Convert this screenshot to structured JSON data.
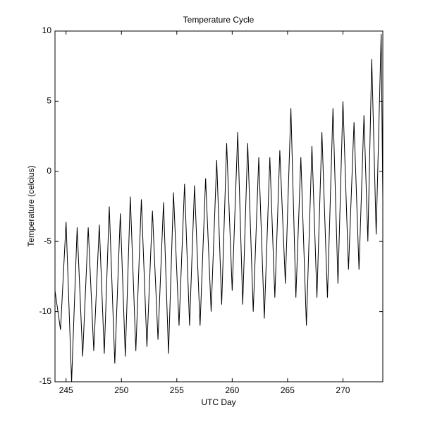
{
  "chart_data": {
    "type": "line",
    "title": "Temperature Cycle",
    "x_label": "UTC Day",
    "y_label": "Temperature (celcius)",
    "x": [
      244.0,
      244.5,
      245.0,
      245.5,
      246.0,
      246.5,
      247.0,
      247.5,
      248.0,
      248.45,
      248.9,
      249.4,
      249.9,
      250.35,
      250.8,
      251.3,
      251.8,
      252.3,
      252.8,
      253.3,
      253.8,
      254.25,
      254.7,
      255.2,
      255.7,
      256.15,
      256.6,
      257.1,
      257.6,
      258.1,
      258.6,
      259.05,
      259.5,
      260.0,
      260.5,
      260.95,
      261.4,
      261.9,
      262.4,
      262.9,
      263.4,
      263.85,
      264.3,
      264.8,
      265.3,
      265.75,
      266.2,
      266.7,
      267.2,
      267.65,
      268.1,
      268.6,
      269.1,
      269.55,
      270.0,
      270.5,
      271.0,
      271.45,
      271.9,
      272.25,
      272.6,
      273.0,
      273.45,
      273.6
    ],
    "series": [
      {
        "name": "Temperature",
        "color": "#000000",
        "values": [
          -8.5,
          -11.3,
          -3.6,
          -15.0,
          -4.0,
          -13.2,
          -4.0,
          -12.8,
          -3.8,
          -13.0,
          -2.5,
          -13.7,
          -3.0,
          -13.2,
          -1.8,
          -12.8,
          -2.0,
          -12.5,
          -2.8,
          -12.0,
          -2.2,
          -13.0,
          -1.5,
          -11.0,
          -0.9,
          -11.0,
          -1.0,
          -11.0,
          -0.5,
          -10.0,
          0.8,
          -9.5,
          2.0,
          -8.5,
          2.8,
          -9.5,
          2.0,
          -10.0,
          1.0,
          -10.5,
          1.0,
          -9.0,
          1.5,
          -8.0,
          4.5,
          -9.0,
          1.0,
          -11.0,
          1.8,
          -9.0,
          2.8,
          -9.0,
          4.5,
          -8.0,
          5.0,
          -7.0,
          3.5,
          -7.0,
          4.0,
          -5.0,
          8.0,
          -4.5,
          9.8,
          -2.0
        ]
      }
    ],
    "xlim": [
      244,
      273.6
    ],
    "ylim": [
      -15,
      10
    ],
    "xticks": [
      245,
      250,
      255,
      260,
      265,
      270
    ],
    "yticks": [
      -15,
      -10,
      -5,
      0,
      5,
      10
    ]
  }
}
